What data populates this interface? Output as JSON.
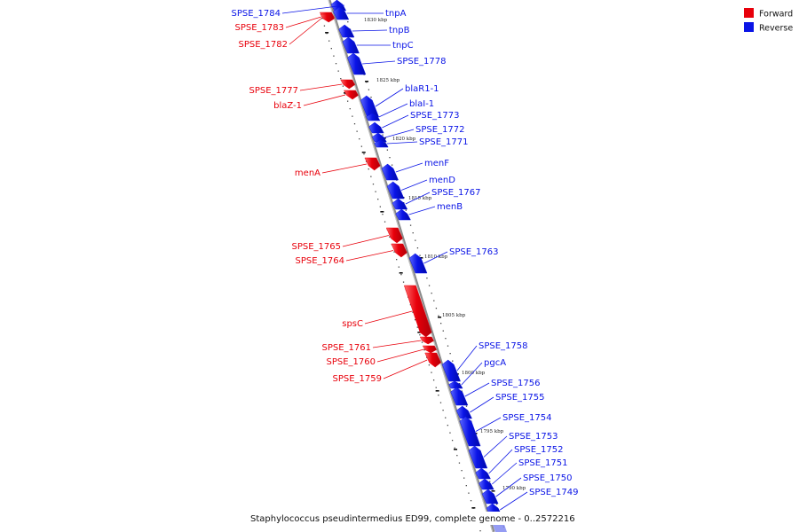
{
  "caption": "Staphylococcus pseudintermedius ED99, complete genome - 0..2572216",
  "legend": [
    {
      "label": "Forward",
      "color": "#e8000b"
    },
    {
      "label": "Reverse",
      "color": "#0a14e6"
    }
  ],
  "colors": {
    "forward": "#e8000b",
    "reverse": "#0a14e6",
    "backbone": "#8a8a8a"
  },
  "kbp_marks": [
    "1830 kbp",
    "1825 kbp",
    "1820 kbp",
    "1815 kbp",
    "1810 kbp",
    "1805 kbp",
    "1800 kbp",
    "1795 kbp",
    "1790 kbp"
  ],
  "genes": [
    {
      "name": "SPSE_1784",
      "strand": "reverse"
    },
    {
      "name": "SPSE_1783",
      "strand": "forward"
    },
    {
      "name": "SPSE_1782",
      "strand": "forward"
    },
    {
      "name": "tnpA",
      "strand": "reverse"
    },
    {
      "name": "tnpB",
      "strand": "reverse"
    },
    {
      "name": "tnpC",
      "strand": "reverse"
    },
    {
      "name": "SPSE_1778",
      "strand": "reverse"
    },
    {
      "name": "SPSE_1777",
      "strand": "forward"
    },
    {
      "name": "blaZ-1",
      "strand": "forward"
    },
    {
      "name": "blaR1-1",
      "strand": "reverse"
    },
    {
      "name": "blaI-1",
      "strand": "reverse"
    },
    {
      "name": "SPSE_1773",
      "strand": "reverse"
    },
    {
      "name": "SPSE_1772",
      "strand": "reverse"
    },
    {
      "name": "SPSE_1771",
      "strand": "reverse"
    },
    {
      "name": "menA",
      "strand": "forward"
    },
    {
      "name": "menF",
      "strand": "reverse"
    },
    {
      "name": "menD",
      "strand": "reverse"
    },
    {
      "name": "SPSE_1767",
      "strand": "reverse"
    },
    {
      "name": "menB",
      "strand": "reverse"
    },
    {
      "name": "SPSE_1765",
      "strand": "forward"
    },
    {
      "name": "SPSE_1764",
      "strand": "forward"
    },
    {
      "name": "SPSE_1763",
      "strand": "reverse"
    },
    {
      "name": "spsC",
      "strand": "forward"
    },
    {
      "name": "SPSE_1761",
      "strand": "forward"
    },
    {
      "name": "SPSE_1760",
      "strand": "forward"
    },
    {
      "name": "SPSE_1759",
      "strand": "forward"
    },
    {
      "name": "SPSE_1758",
      "strand": "reverse"
    },
    {
      "name": "pgcA",
      "strand": "reverse"
    },
    {
      "name": "SPSE_1756",
      "strand": "reverse"
    },
    {
      "name": "SPSE_1755",
      "strand": "reverse"
    },
    {
      "name": "SPSE_1754",
      "strand": "reverse"
    },
    {
      "name": "SPSE_1753",
      "strand": "reverse"
    },
    {
      "name": "SPSE_1752",
      "strand": "reverse"
    },
    {
      "name": "SPSE_1751",
      "strand": "reverse"
    },
    {
      "name": "SPSE_1750",
      "strand": "reverse"
    },
    {
      "name": "SPSE_1749",
      "strand": "reverse"
    }
  ]
}
